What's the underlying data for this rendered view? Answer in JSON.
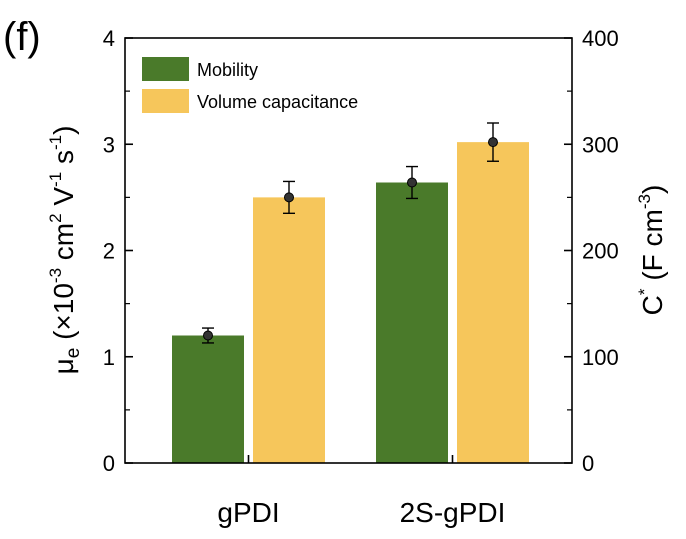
{
  "panel_label": "(f)",
  "colors": {
    "mobility": "#4a7a2a",
    "capacitance": "#f6c65b",
    "axis": "#000000"
  },
  "chart_data": {
    "type": "bar",
    "categories": [
      "gPDI",
      "2S-gPDI"
    ],
    "series": [
      {
        "name": "Mobility",
        "axis": "left",
        "values": [
          1.2,
          2.64
        ],
        "errors": [
          0.07,
          0.15
        ]
      },
      {
        "name": "Volume capacitance",
        "axis": "right",
        "values": [
          250,
          302
        ],
        "errors": [
          15,
          18
        ]
      }
    ],
    "left_axis": {
      "label_main": "μ",
      "label_sub": "e",
      "label_rest_1": " (×10",
      "label_sup_1": "-3",
      "label_rest_2": " cm",
      "label_sup_2": "2",
      "label_rest_3": " V",
      "label_sup_3": "-1",
      "label_rest_4": " s",
      "label_sup_4": "-1",
      "label_rest_5": ")",
      "ylim": [
        0,
        4
      ],
      "ticks": [
        0,
        1,
        2,
        3,
        4
      ]
    },
    "right_axis": {
      "label_main": "C",
      "label_sup_a": "*",
      "label_rest_1": " (F cm",
      "label_sup_1": "-3",
      "label_rest_2": ")",
      "ylim": [
        0,
        400
      ],
      "ticks": [
        0,
        100,
        200,
        300,
        400
      ]
    },
    "legend_position": "top-left",
    "grid": false
  }
}
